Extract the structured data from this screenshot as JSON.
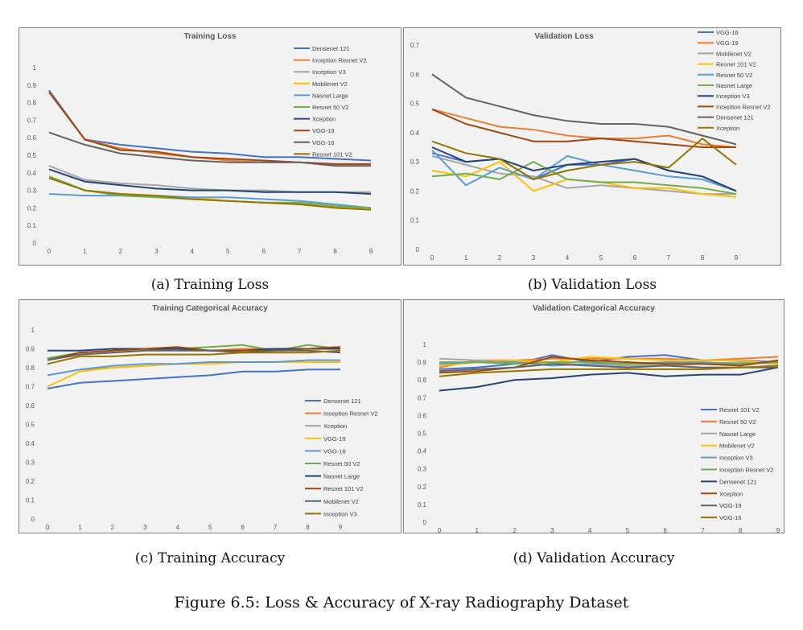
{
  "figure_caption": "Figure 6.5: Loss & Accuracy of X-ray Radiography Dataset",
  "subcaptions": [
    "(a) Training Loss",
    "(b) Validation Loss",
    "(c) Training Accuracy",
    "(d) Validation Accuracy"
  ],
  "chart_data": [
    {
      "id": "training-loss",
      "type": "line",
      "title": "Training Loss",
      "xlabel": "",
      "ylabel": "",
      "x": [
        0,
        1,
        2,
        3,
        4,
        5,
        6,
        7,
        8,
        9
      ],
      "ylim": [
        0,
        1
      ],
      "yticks": [
        0,
        0.1,
        0.2,
        0.3,
        0.4,
        0.5,
        0.6,
        0.7,
        0.8,
        0.9,
        1
      ],
      "legend_position": "top-right",
      "grid": false,
      "series": [
        {
          "name": "Densenet 121",
          "color": "#4472c4",
          "values": [
            0.87,
            0.59,
            0.56,
            0.54,
            0.52,
            0.51,
            0.49,
            0.49,
            0.48,
            0.47
          ]
        },
        {
          "name": "Inception Resnet V2",
          "color": "#ed7d31",
          "values": [
            0.86,
            0.59,
            0.54,
            0.51,
            0.49,
            0.47,
            0.46,
            0.46,
            0.45,
            0.45
          ]
        },
        {
          "name": "Inception V3",
          "color": "#a5a5a5",
          "values": [
            0.44,
            0.36,
            0.34,
            0.33,
            0.31,
            0.3,
            0.3,
            0.29,
            0.29,
            0.29
          ]
        },
        {
          "name": "Mobilenet V2",
          "color": "#ffc000",
          "values": [
            0.38,
            0.3,
            0.28,
            0.27,
            0.26,
            0.24,
            0.23,
            0.22,
            0.2,
            0.19
          ]
        },
        {
          "name": "Nasnet Large",
          "color": "#5b9bd5",
          "values": [
            0.28,
            0.27,
            0.27,
            0.27,
            0.26,
            0.26,
            0.25,
            0.24,
            0.22,
            0.2
          ]
        },
        {
          "name": "Resnet 50 V2",
          "color": "#70ad47",
          "values": [
            0.38,
            0.3,
            0.27,
            0.26,
            0.25,
            0.24,
            0.23,
            0.23,
            0.21,
            0.2
          ]
        },
        {
          "name": "Xception",
          "color": "#264478",
          "values": [
            0.42,
            0.35,
            0.33,
            0.31,
            0.3,
            0.3,
            0.29,
            0.29,
            0.29,
            0.28
          ]
        },
        {
          "name": "VGG-19",
          "color": "#9e480e",
          "values": [
            0.86,
            0.59,
            0.53,
            0.52,
            0.49,
            0.48,
            0.47,
            0.46,
            0.45,
            0.45
          ]
        },
        {
          "name": "VGG-16",
          "color": "#636363",
          "values": [
            0.63,
            0.56,
            0.51,
            0.49,
            0.47,
            0.46,
            0.46,
            0.46,
            0.44,
            0.44
          ]
        },
        {
          "name": "Resnet 101 V2",
          "color": "#997300",
          "values": [
            0.37,
            0.3,
            0.28,
            0.27,
            0.25,
            0.24,
            0.23,
            0.22,
            0.2,
            0.19
          ]
        }
      ]
    },
    {
      "id": "validation-loss",
      "type": "line",
      "title": "Validation Loss",
      "xlabel": "",
      "ylabel": "",
      "x": [
        0,
        1,
        2,
        3,
        4,
        5,
        6,
        7,
        8,
        9
      ],
      "ylim": [
        0,
        0.7
      ],
      "yticks": [
        0,
        0.1,
        0.2,
        0.3,
        0.4,
        0.5,
        0.6,
        0.7
      ],
      "legend_position": "top-right",
      "grid": false,
      "series": [
        {
          "name": "VGG-16",
          "color": "#4472c4",
          "values": [
            0.33,
            0.3,
            0.31,
            0.24,
            0.29,
            0.29,
            0.31,
            0.27,
            0.25,
            0.2
          ]
        },
        {
          "name": "VGG-19",
          "color": "#ed7d31",
          "values": [
            0.48,
            0.45,
            0.42,
            0.41,
            0.39,
            0.38,
            0.38,
            0.39,
            0.36,
            0.35
          ]
        },
        {
          "name": "Mobilenet V2",
          "color": "#a5a5a5",
          "values": [
            0.32,
            0.29,
            0.26,
            0.25,
            0.21,
            0.22,
            0.21,
            0.2,
            0.19,
            0.19
          ]
        },
        {
          "name": "Resnet 101 V2",
          "color": "#ffc000",
          "values": [
            0.27,
            0.25,
            0.3,
            0.2,
            0.24,
            0.23,
            0.21,
            0.21,
            0.19,
            0.18
          ]
        },
        {
          "name": "Resnet 50 V2",
          "color": "#5b9bd5",
          "values": [
            0.34,
            0.22,
            0.28,
            0.24,
            0.32,
            0.29,
            0.27,
            0.25,
            0.24,
            0.2
          ]
        },
        {
          "name": "Nasnet Large",
          "color": "#70ad47",
          "values": [
            0.25,
            0.26,
            0.24,
            0.3,
            0.24,
            0.23,
            0.23,
            0.22,
            0.21,
            0.19
          ]
        },
        {
          "name": "Inception V3",
          "color": "#264478",
          "values": [
            0.35,
            0.3,
            0.31,
            0.27,
            0.29,
            0.3,
            0.31,
            0.27,
            0.25,
            0.2
          ]
        },
        {
          "name": "Inception Resnet V2",
          "color": "#9e480e",
          "values": [
            0.48,
            0.43,
            0.4,
            0.37,
            0.37,
            0.38,
            0.37,
            0.36,
            0.35,
            0.35
          ]
        },
        {
          "name": "Densenet 121",
          "color": "#636363",
          "values": [
            0.6,
            0.52,
            0.49,
            0.46,
            0.44,
            0.43,
            0.43,
            0.42,
            0.39,
            0.36
          ]
        },
        {
          "name": "Xception",
          "color": "#997300",
          "values": [
            0.37,
            0.33,
            0.31,
            0.24,
            0.27,
            0.29,
            0.3,
            0.28,
            0.38,
            0.29
          ]
        }
      ]
    },
    {
      "id": "training-categorical-accuracy",
      "type": "line",
      "title": "Training Categorical Accuracy",
      "xlabel": "",
      "ylabel": "",
      "x": [
        0,
        1,
        2,
        3,
        4,
        5,
        6,
        7,
        8,
        9
      ],
      "ylim": [
        0,
        1
      ],
      "yticks": [
        0,
        0.1,
        0.2,
        0.3,
        0.4,
        0.5,
        0.6,
        0.7,
        0.8,
        0.9,
        1
      ],
      "legend_position": "bottom-right",
      "grid": false,
      "series": [
        {
          "name": "Densenet 121",
          "color": "#4472c4",
          "values": [
            0.69,
            0.72,
            0.73,
            0.74,
            0.75,
            0.76,
            0.78,
            0.78,
            0.79,
            0.79
          ]
        },
        {
          "name": "Inception Resnet V2",
          "color": "#ed7d31",
          "values": [
            0.85,
            0.87,
            0.88,
            0.89,
            0.9,
            0.89,
            0.9,
            0.9,
            0.9,
            0.91
          ]
        },
        {
          "name": "Xception",
          "color": "#a5a5a5",
          "values": [
            0.76,
            0.79,
            0.8,
            0.81,
            0.82,
            0.83,
            0.83,
            0.83,
            0.83,
            0.83
          ]
        },
        {
          "name": "VGG-19",
          "color": "#ffc000",
          "values": [
            0.7,
            0.78,
            0.8,
            0.81,
            0.82,
            0.82,
            0.83,
            0.83,
            0.83,
            0.83
          ]
        },
        {
          "name": "VGG-16",
          "color": "#5b9bd5",
          "values": [
            0.76,
            0.79,
            0.81,
            0.82,
            0.82,
            0.83,
            0.83,
            0.83,
            0.84,
            0.84
          ]
        },
        {
          "name": "Resnet 50 V2",
          "color": "#70ad47",
          "values": [
            0.85,
            0.88,
            0.89,
            0.9,
            0.9,
            0.91,
            0.92,
            0.89,
            0.92,
            0.9
          ]
        },
        {
          "name": "Nasnet Large",
          "color": "#264478",
          "values": [
            0.89,
            0.89,
            0.9,
            0.9,
            0.9,
            0.89,
            0.89,
            0.9,
            0.9,
            0.9
          ]
        },
        {
          "name": "Resnet 101 V2",
          "color": "#9e480e",
          "values": [
            0.84,
            0.88,
            0.89,
            0.9,
            0.91,
            0.89,
            0.89,
            0.89,
            0.9,
            0.91
          ]
        },
        {
          "name": "Mobilenet V2",
          "color": "#636363",
          "values": [
            0.84,
            0.87,
            0.88,
            0.89,
            0.89,
            0.89,
            0.88,
            0.89,
            0.89,
            0.88
          ]
        },
        {
          "name": "Inception V3",
          "color": "#997300",
          "values": [
            0.82,
            0.86,
            0.86,
            0.87,
            0.87,
            0.87,
            0.88,
            0.88,
            0.88,
            0.89
          ]
        }
      ]
    },
    {
      "id": "validation-categorical-accuracy",
      "type": "line",
      "title": "Validation Categorical Accuracy",
      "xlabel": "",
      "ylabel": "",
      "x": [
        0,
        1,
        2,
        3,
        4,
        5,
        6,
        7,
        8,
        9
      ],
      "ylim": [
        0,
        1
      ],
      "yticks": [
        0,
        0.1,
        0.2,
        0.3,
        0.4,
        0.5,
        0.6,
        0.7,
        0.8,
        0.9,
        1
      ],
      "legend_position": "bottom-right",
      "grid": false,
      "series": [
        {
          "name": "Resnet 101 V2",
          "color": "#4472c4",
          "values": [
            0.86,
            0.87,
            0.89,
            0.94,
            0.9,
            0.93,
            0.94,
            0.91,
            0.91,
            0.9
          ]
        },
        {
          "name": "Resnet 50 V2",
          "color": "#ed7d31",
          "values": [
            0.87,
            0.91,
            0.91,
            0.92,
            0.92,
            0.92,
            0.92,
            0.91,
            0.92,
            0.93
          ]
        },
        {
          "name": "Nasnet Large",
          "color": "#a5a5a5",
          "values": [
            0.92,
            0.91,
            0.9,
            0.9,
            0.88,
            0.88,
            0.88,
            0.89,
            0.9,
            0.89
          ]
        },
        {
          "name": "Mobilenet V2",
          "color": "#ffc000",
          "values": [
            0.88,
            0.9,
            0.91,
            0.9,
            0.93,
            0.92,
            0.91,
            0.91,
            0.91,
            0.89
          ]
        },
        {
          "name": "Inception V3",
          "color": "#5b9bd5",
          "values": [
            0.89,
            0.9,
            0.9,
            0.88,
            0.89,
            0.89,
            0.9,
            0.9,
            0.89,
            0.9
          ]
        },
        {
          "name": "Inception Resnet V2",
          "color": "#70ad47",
          "values": [
            0.9,
            0.9,
            0.89,
            0.9,
            0.9,
            0.89,
            0.89,
            0.89,
            0.89,
            0.9
          ]
        },
        {
          "name": "Densenet 121",
          "color": "#264478",
          "values": [
            0.74,
            0.76,
            0.8,
            0.81,
            0.83,
            0.84,
            0.82,
            0.83,
            0.83,
            0.87
          ]
        },
        {
          "name": "Xception",
          "color": "#9e480e",
          "values": [
            0.84,
            0.85,
            0.87,
            0.93,
            0.91,
            0.9,
            0.89,
            0.89,
            0.88,
            0.91
          ]
        },
        {
          "name": "VGG-19",
          "color": "#636363",
          "values": [
            0.85,
            0.86,
            0.87,
            0.89,
            0.88,
            0.87,
            0.88,
            0.87,
            0.87,
            0.87
          ]
        },
        {
          "name": "VGG-16",
          "color": "#997300",
          "values": [
            0.82,
            0.84,
            0.85,
            0.86,
            0.86,
            0.86,
            0.86,
            0.86,
            0.87,
            0.88
          ]
        }
      ]
    }
  ]
}
